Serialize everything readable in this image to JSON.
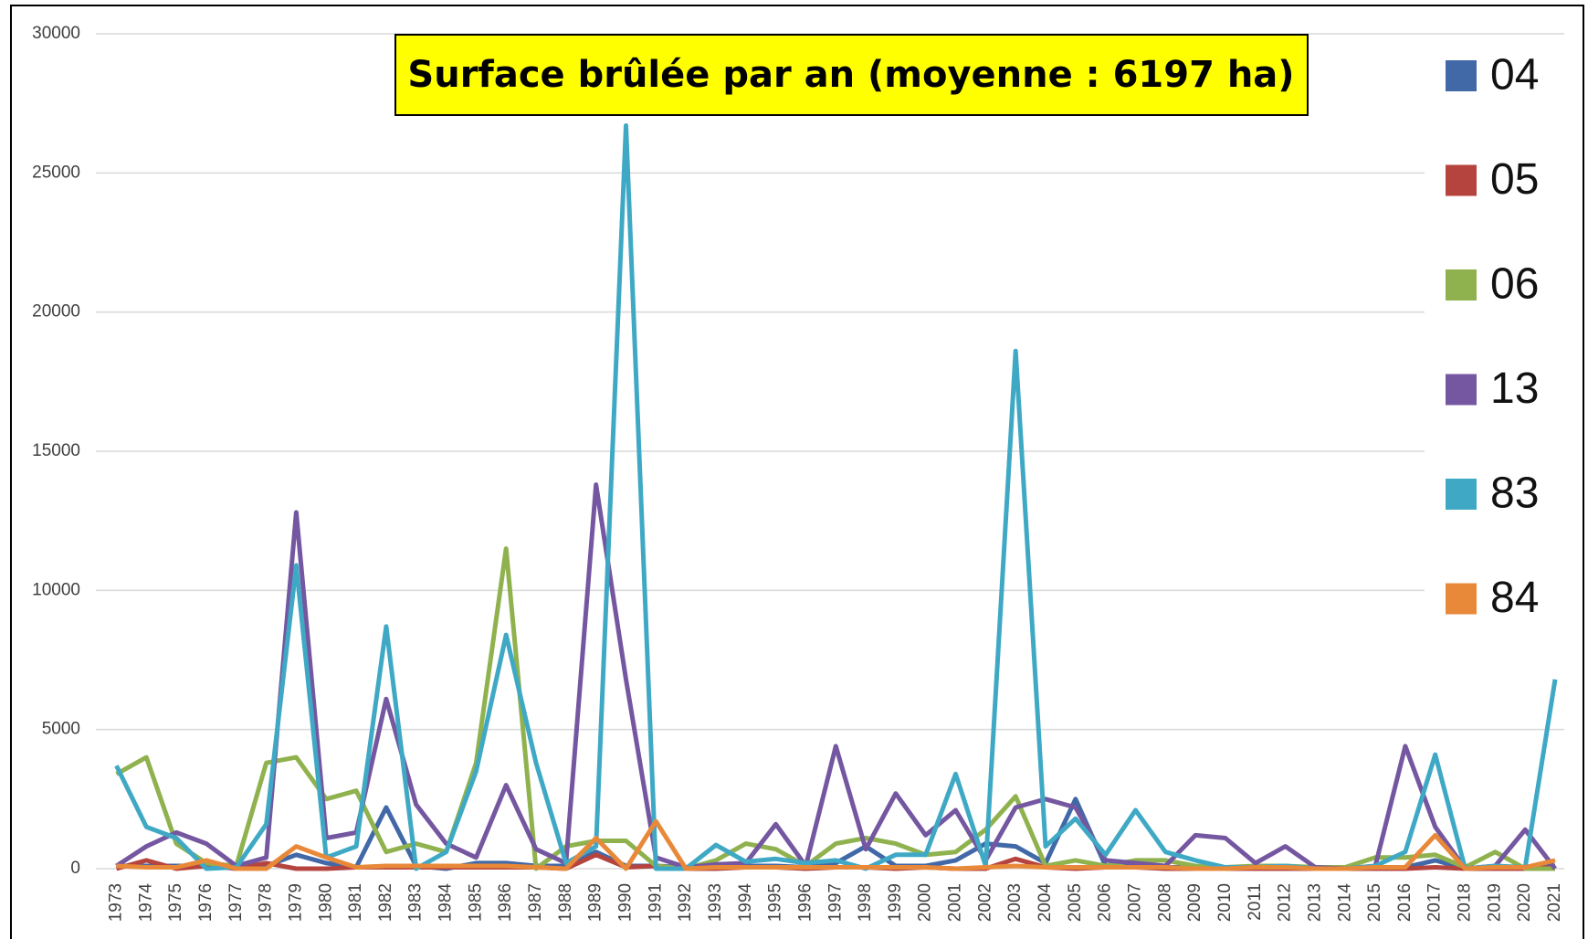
{
  "chart_data": {
    "type": "line",
    "title": "Surface brûlée par an (moyenne : 6197 ha)",
    "x": [
      1973,
      1974,
      1975,
      1976,
      1977,
      1978,
      1979,
      1980,
      1981,
      1982,
      1983,
      1984,
      1985,
      1986,
      1987,
      1988,
      1989,
      1990,
      1991,
      1992,
      1993,
      1994,
      1995,
      1996,
      1997,
      1998,
      1999,
      2000,
      2001,
      2002,
      2003,
      2004,
      2005,
      2006,
      2007,
      2008,
      2009,
      2010,
      2011,
      2012,
      2013,
      2014,
      2015,
      2016,
      2017,
      2018,
      2019,
      2020,
      2021
    ],
    "ylim": [
      0,
      30000
    ],
    "yticks": [
      0,
      5000,
      10000,
      15000,
      20000,
      25000,
      30000
    ],
    "grid": true,
    "legend": "right",
    "series": [
      {
        "name": "04",
        "color": "#4169a8",
        "values": [
          100,
          100,
          100,
          100,
          50,
          100,
          500,
          200,
          50,
          2200,
          100,
          0,
          200,
          200,
          100,
          100,
          600,
          100,
          100,
          50,
          50,
          100,
          100,
          50,
          200,
          800,
          100,
          100,
          300,
          900,
          800,
          200,
          2500,
          100,
          100,
          50,
          50,
          50,
          50,
          50,
          0,
          0,
          50,
          50,
          300,
          0,
          50,
          50,
          100
        ]
      },
      {
        "name": "05",
        "color": "#b5443f",
        "values": [
          0,
          300,
          0,
          100,
          0,
          200,
          0,
          0,
          50,
          50,
          50,
          50,
          50,
          50,
          50,
          0,
          500,
          50,
          100,
          0,
          0,
          50,
          50,
          0,
          50,
          50,
          0,
          50,
          0,
          0,
          350,
          50,
          0,
          50,
          50,
          0,
          0,
          0,
          0,
          0,
          0,
          0,
          0,
          0,
          50,
          0,
          0,
          0,
          50
        ]
      },
      {
        "name": "06",
        "color": "#8fb24f",
        "values": [
          3400,
          4000,
          900,
          200,
          100,
          3800,
          4000,
          2500,
          2800,
          600,
          900,
          600,
          3800,
          11500,
          0,
          800,
          1000,
          1000,
          100,
          0,
          300,
          900,
          700,
          100,
          900,
          1100,
          900,
          500,
          600,
          1400,
          2600,
          100,
          300,
          100,
          300,
          300,
          100,
          50,
          100,
          100,
          50,
          50,
          400,
          400,
          500,
          50,
          600,
          0,
          0
        ]
      },
      {
        "name": "13",
        "color": "#7457a0",
        "values": [
          100,
          800,
          1300,
          900,
          100,
          400,
          12800,
          1100,
          1300,
          6100,
          2300,
          900,
          400,
          3000,
          700,
          200,
          13800,
          6800,
          400,
          50,
          150,
          200,
          1600,
          100,
          4400,
          700,
          2700,
          1200,
          2100,
          300,
          2200,
          2500,
          2200,
          300,
          200,
          100,
          1200,
          1100,
          200,
          800,
          50,
          0,
          100,
          4400,
          1500,
          0,
          100,
          1400,
          0
        ]
      },
      {
        "name": "83",
        "color": "#3fa9c5",
        "values": [
          3700,
          1500,
          1100,
          0,
          50,
          1600,
          10900,
          400,
          800,
          8700,
          0,
          600,
          3500,
          8400,
          3800,
          200,
          800,
          26700,
          0,
          0,
          850,
          250,
          350,
          200,
          300,
          0,
          500,
          500,
          3400,
          100,
          18600,
          800,
          1800,
          500,
          2100,
          600,
          300,
          50,
          50,
          100,
          0,
          0,
          100,
          600,
          4100,
          0,
          100,
          50,
          6800
        ]
      },
      {
        "name": "84",
        "color": "#e8893a",
        "values": [
          100,
          50,
          50,
          300,
          0,
          0,
          800,
          400,
          50,
          100,
          100,
          100,
          100,
          100,
          50,
          0,
          1100,
          0,
          1700,
          0,
          50,
          50,
          50,
          50,
          50,
          50,
          50,
          50,
          0,
          50,
          100,
          50,
          50,
          50,
          50,
          50,
          0,
          0,
          50,
          50,
          0,
          0,
          50,
          50,
          1200,
          0,
          50,
          50,
          300
        ]
      }
    ]
  }
}
